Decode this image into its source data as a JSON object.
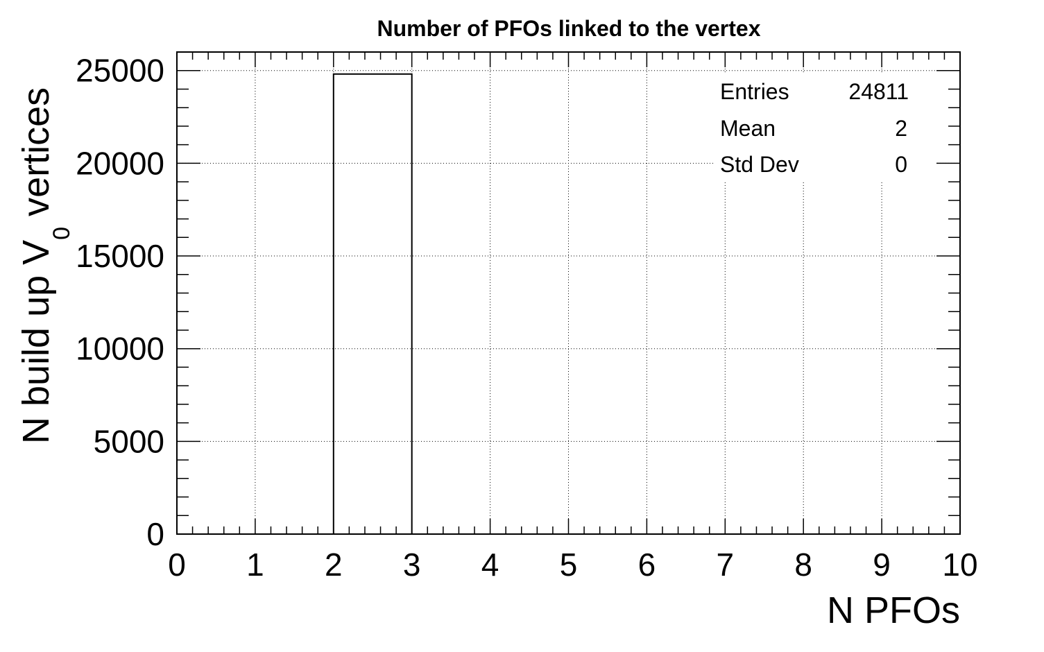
{
  "chart_data": {
    "type": "bar",
    "title": "Number of PFOs linked to the vertex",
    "xlabel": "N PFOs",
    "ylabel": {
      "main": "N build up V",
      "subscript": "0",
      "suffix": " vertices"
    },
    "xlim": [
      0,
      10
    ],
    "ylim": [
      0,
      26000
    ],
    "x_ticks": [
      "0",
      "1",
      "2",
      "3",
      "4",
      "5",
      "6",
      "7",
      "8",
      "9",
      "10"
    ],
    "y_ticks": [
      "0",
      "5000",
      "10000",
      "15000",
      "20000",
      "25000"
    ],
    "x_tick_values": [
      0,
      1,
      2,
      3,
      4,
      5,
      6,
      7,
      8,
      9,
      10
    ],
    "y_tick_values": [
      0,
      5000,
      10000,
      15000,
      20000,
      25000
    ],
    "bins": [
      {
        "low": 2,
        "high": 3,
        "value": 24811
      }
    ],
    "grid": true,
    "stats_box": {
      "placement": "top-right",
      "rows": [
        {
          "label": "Entries",
          "value": "24811"
        },
        {
          "label": "Mean",
          "value": "2"
        },
        {
          "label": "Std Dev",
          "value": "0"
        }
      ]
    },
    "colors": {
      "bar_line": "#000000",
      "background": "#ffffff"
    }
  }
}
